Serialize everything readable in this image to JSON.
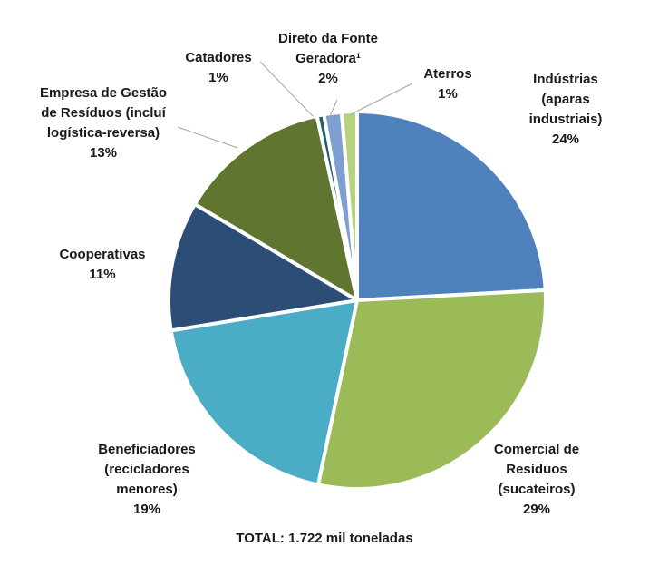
{
  "chart_data": {
    "type": "pie",
    "total_label": "TOTAL: 1.722 mil toneladas",
    "slices": [
      {
        "label_lines": [
          "Indústrias",
          "(aparas",
          "industriais)"
        ],
        "pct_label": "24%",
        "value": 24,
        "color": "#4F81BD"
      },
      {
        "label_lines": [
          "Comercial de",
          "Resíduos",
          "(sucateiros)"
        ],
        "pct_label": "29%",
        "value": 29,
        "color": "#9BBB59"
      },
      {
        "label_lines": [
          "Beneficiadores",
          "(recicladores",
          "menores)"
        ],
        "pct_label": "19%",
        "value": 19,
        "color": "#4BACC6"
      },
      {
        "label_lines": [
          "Cooperativas"
        ],
        "pct_label": "11%",
        "value": 11,
        "color": "#2C4D75"
      },
      {
        "label_lines": [
          "Empresa de Gestão",
          "de Resíduos (incluí",
          "logística-reversa)"
        ],
        "pct_label": "13%",
        "value": 13,
        "color": "#5F7530"
      },
      {
        "label_lines": [
          "Catadores"
        ],
        "pct_label": "1%",
        "value": 0.6,
        "color": "#1F5F6E"
      },
      {
        "label_lines": [
          "Direto da Fonte",
          "Geradora¹"
        ],
        "pct_label": "2%",
        "value": 1.5,
        "color": "#7F9FD0"
      },
      {
        "label_lines": [
          "Aterros"
        ],
        "pct_label": "1%",
        "value": 1.3,
        "color": "#B7D27E"
      }
    ]
  }
}
